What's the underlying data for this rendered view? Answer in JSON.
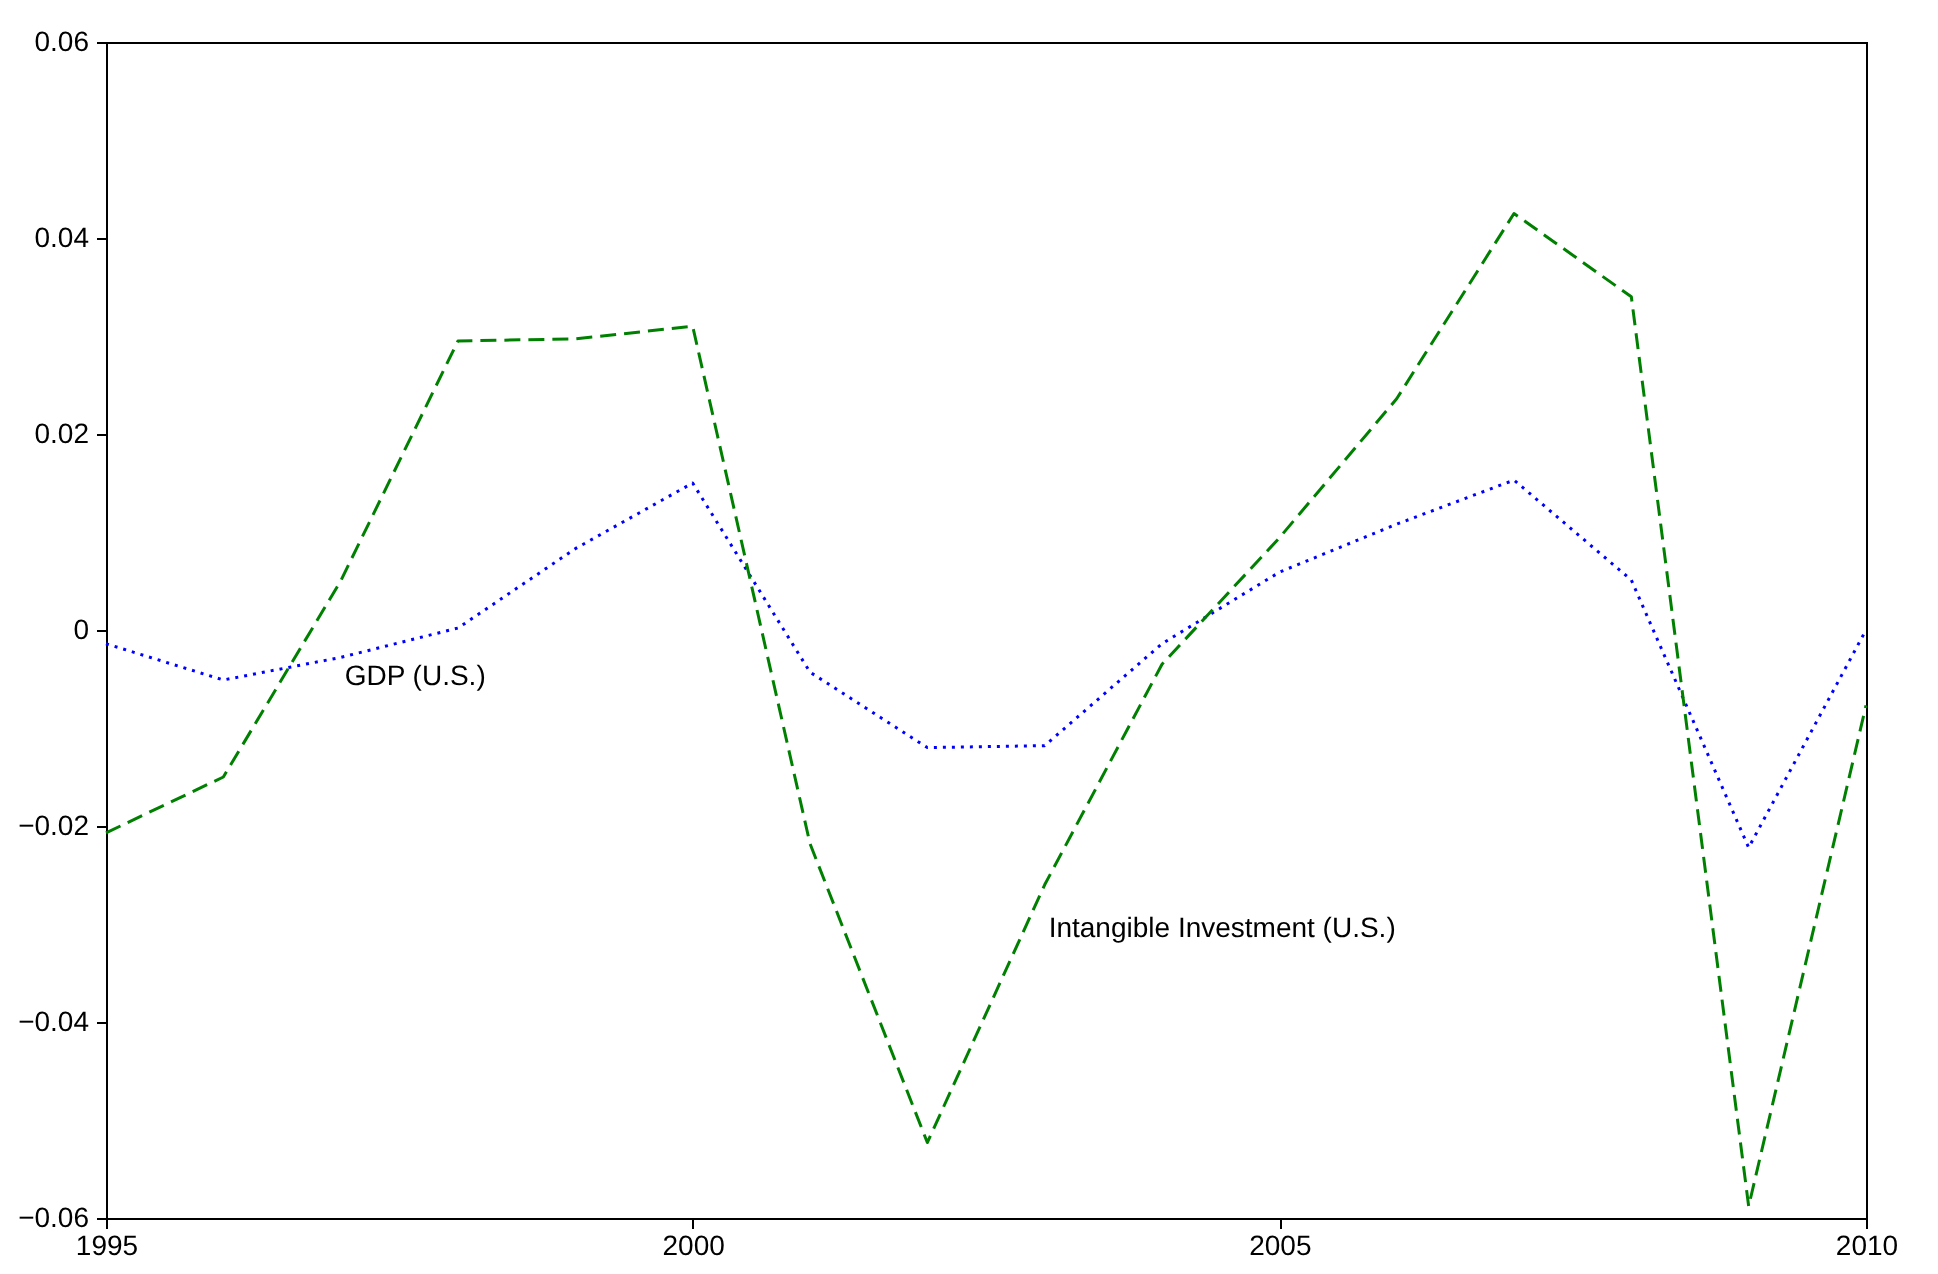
{
  "chart_data": {
    "type": "line",
    "x": [
      1995,
      1996,
      1997,
      1998,
      1999,
      2000,
      2001,
      2002,
      2003,
      2004,
      2005,
      2006,
      2007,
      2008,
      2009,
      2010
    ],
    "series": [
      {
        "name": "GDP (U.S.)",
        "color": "#0000ff",
        "line_style": "dotted",
        "values": [
          -0.0014,
          -0.0051,
          -0.0028,
          0.0002,
          0.0083,
          0.015,
          -0.0043,
          -0.012,
          -0.0118,
          -0.0014,
          0.0059,
          0.0108,
          0.0153,
          0.0051,
          -0.0222,
          0
        ]
      },
      {
        "name": "Intangible Investment (U.S.)",
        "color": "#008000",
        "line_style": "dashed",
        "values": [
          -0.0207,
          -0.015,
          0.005,
          0.0295,
          0.0297,
          0.031,
          -0.0218,
          -0.0523,
          -0.026,
          -0.0035,
          0.0094,
          0.0236,
          0.0425,
          0.034,
          -0.0588,
          -0.0077
        ]
      }
    ],
    "xlim": [
      1995,
      2010
    ],
    "xticks": [
      1995,
      2000,
      2005,
      2010
    ],
    "ylim": [
      -0.06,
      0.06
    ],
    "yticks": [
      -0.06,
      -0.04,
      -0.02,
      0,
      0.02,
      0.04,
      0.06
    ],
    "grid": false
  }
}
